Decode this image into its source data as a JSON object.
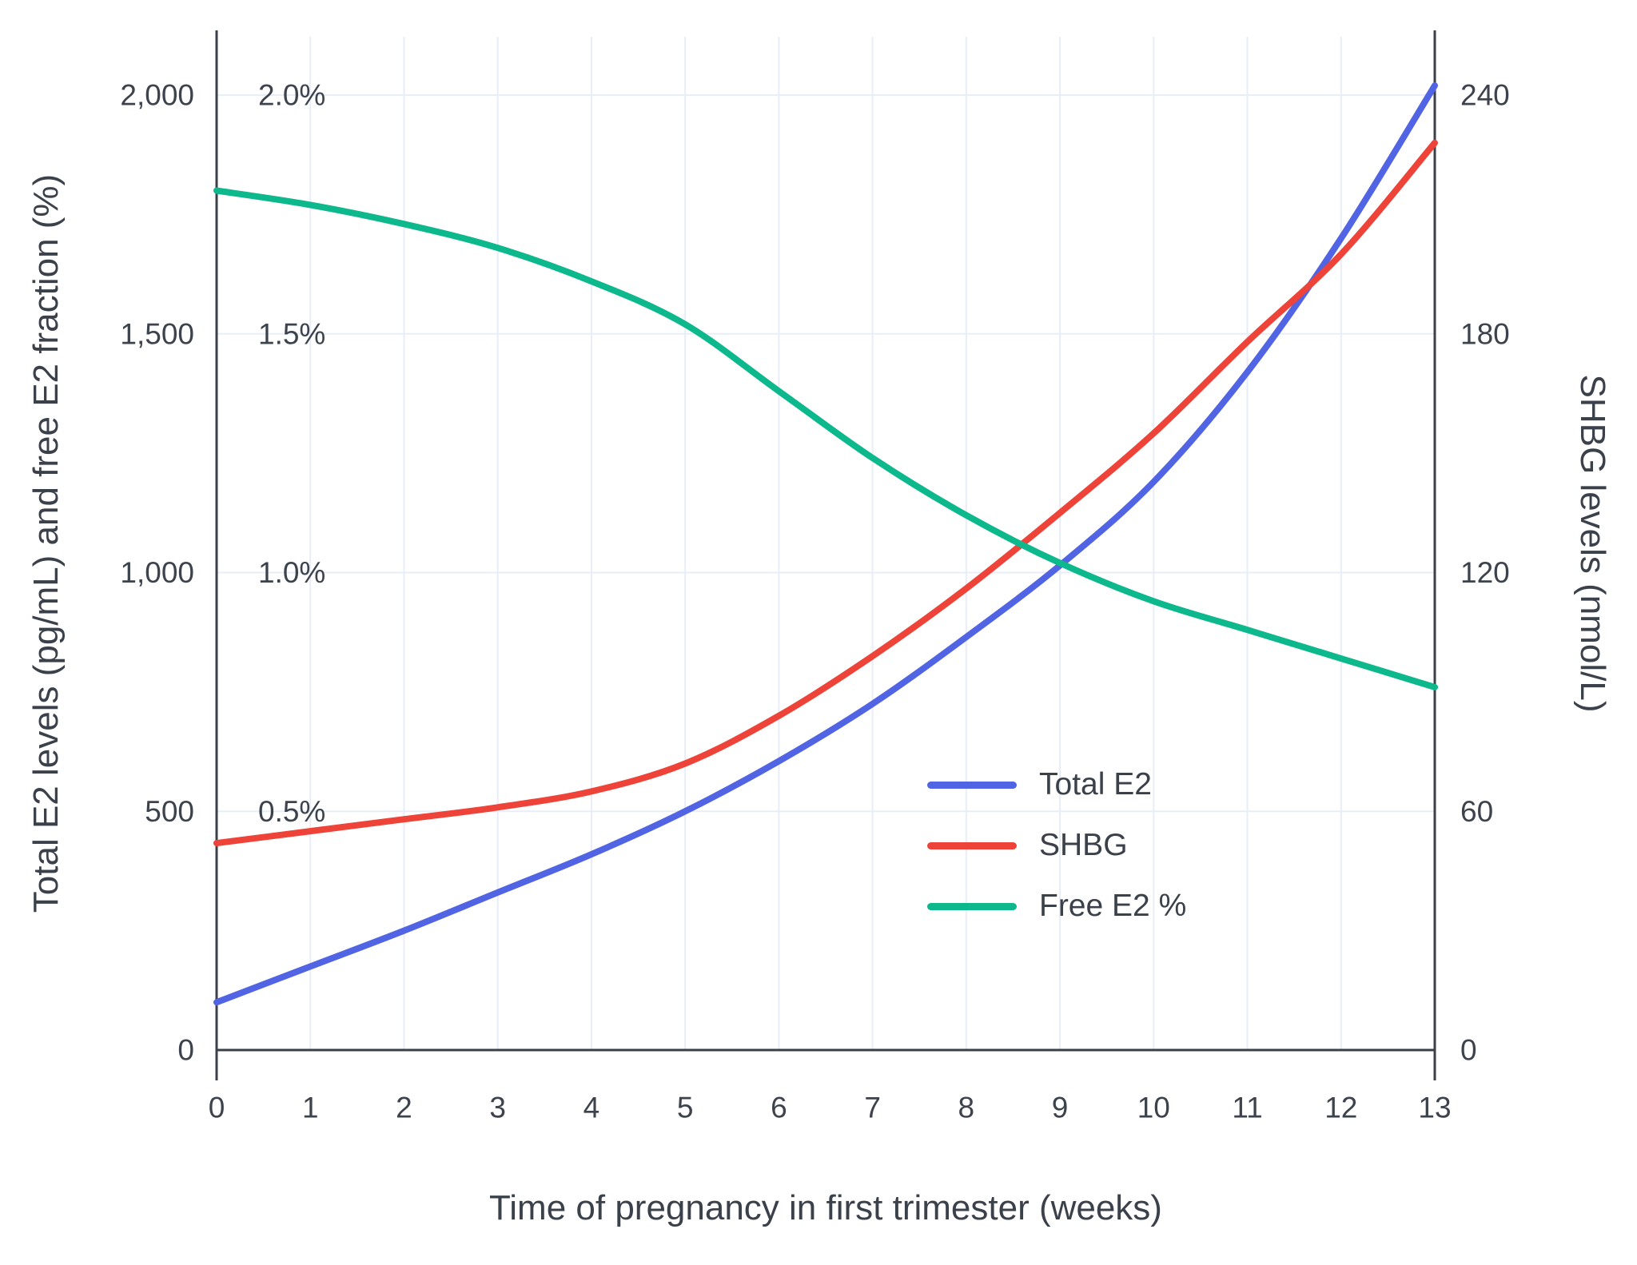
{
  "chart_data": {
    "type": "line",
    "title": "",
    "xlabel": "Time of pregnancy in first trimester (weeks)",
    "ylabel_left": "Total E2 levels (pg/mL) and free E2 fraction (%)",
    "ylabel_right": "SHBG levels (nmol/L)",
    "x": [
      0,
      1,
      2,
      3,
      4,
      5,
      6,
      7,
      8,
      9,
      10,
      11,
      12,
      13
    ],
    "xlim": [
      0,
      13
    ],
    "xticks": [
      {
        "v": 0,
        "label": "0"
      },
      {
        "v": 1,
        "label": "1"
      },
      {
        "v": 2,
        "label": "2"
      },
      {
        "v": 3,
        "label": "3"
      },
      {
        "v": 4,
        "label": "4"
      },
      {
        "v": 5,
        "label": "5"
      },
      {
        "v": 6,
        "label": "6"
      },
      {
        "v": 7,
        "label": "7"
      },
      {
        "v": 8,
        "label": "8"
      },
      {
        "v": 9,
        "label": "9"
      },
      {
        "v": 10,
        "label": "10"
      },
      {
        "v": 11,
        "label": "11"
      },
      {
        "v": 12,
        "label": "12"
      },
      {
        "v": 13,
        "label": "13"
      }
    ],
    "ylim_left": [
      0,
      2120
    ],
    "yticks_left": [
      {
        "v": 0,
        "label": "0"
      },
      {
        "v": 500,
        "label": "500"
      },
      {
        "v": 1000,
        "label": "1,000"
      },
      {
        "v": 1500,
        "label": "1,500"
      },
      {
        "v": 2000,
        "label": "2,000"
      }
    ],
    "yticks_pct": [
      {
        "v": 500,
        "label": "0.5%"
      },
      {
        "v": 1000,
        "label": "1.0%"
      },
      {
        "v": 1500,
        "label": "1.5%"
      },
      {
        "v": 2000,
        "label": "2.0%"
      }
    ],
    "ylim_right": [
      0,
      254
    ],
    "yticks_right": [
      {
        "v": 0,
        "label": "0"
      },
      {
        "v": 60,
        "label": "60"
      },
      {
        "v": 120,
        "label": "120"
      },
      {
        "v": 180,
        "label": "180"
      },
      {
        "v": 240,
        "label": "240"
      }
    ],
    "grid": true,
    "legend_position": "inside-right",
    "colors": {
      "grid": "#e8edf7",
      "axis_line": "#3b4048",
      "text": "#3d434c"
    },
    "series": [
      {
        "name": "Total E2",
        "axis": "left",
        "unit": "pg/mL",
        "color": "#5164e3",
        "values": [
          100,
          175,
          250,
          330,
          410,
          500,
          605,
          725,
          865,
          1015,
          1190,
          1420,
          1700,
          2020
        ]
      },
      {
        "name": "SHBG",
        "axis": "right",
        "unit": "nmol/L",
        "color": "#ee4338",
        "values": [
          52,
          55,
          58,
          61,
          65,
          72,
          84,
          99,
          116,
          135,
          155,
          178,
          200,
          228
        ]
      },
      {
        "name": "Free E2 %",
        "axis": "left_pct",
        "unit": "%",
        "color": "#0cb88c",
        "values": [
          1.8,
          1.77,
          1.73,
          1.68,
          1.61,
          1.52,
          1.38,
          1.24,
          1.12,
          1.02,
          0.94,
          0.88,
          0.82,
          0.76
        ]
      }
    ]
  }
}
